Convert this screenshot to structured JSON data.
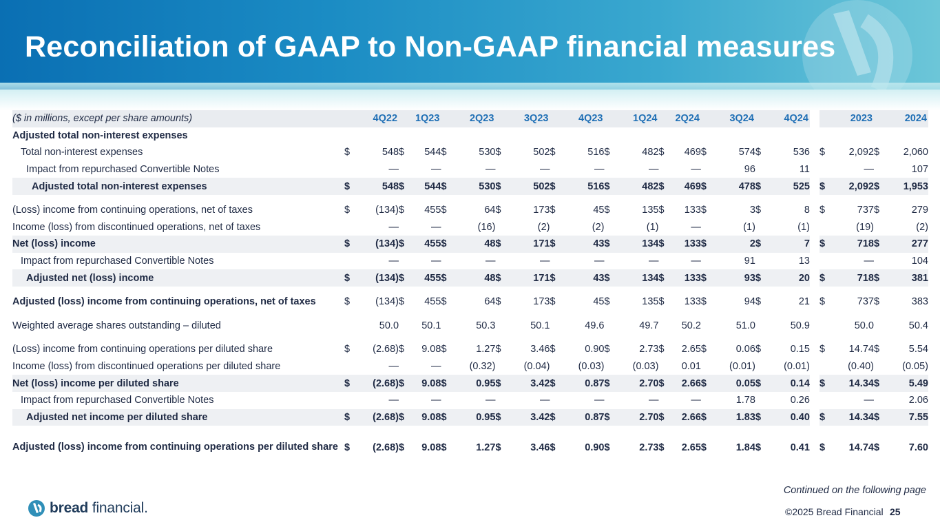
{
  "title": "Reconciliation of GAAP to Non-GAAP financial measures",
  "units_note": "($ in millions, except per share amounts)",
  "periods": [
    "4Q22",
    "1Q23",
    "2Q23",
    "3Q23",
    "4Q23",
    "1Q24",
    "2Q24",
    "3Q24",
    "4Q24"
  ],
  "years": [
    "2023",
    "2024"
  ],
  "rows": [
    {
      "label": "Adjusted total non-interest expenses",
      "style": "bold",
      "indent": 0,
      "dollar": false,
      "values": [
        "",
        "",
        "",
        "",
        "",
        "",
        "",
        "",
        "",
        "",
        ""
      ]
    },
    {
      "label": "Total non-interest expenses",
      "style": "normal",
      "indent": 1,
      "dollar": true,
      "values": [
        "548",
        "544",
        "530",
        "502",
        "516",
        "482",
        "469",
        "574",
        "536",
        "2,092",
        "2,060"
      ]
    },
    {
      "label": "Impact from repurchased Convertible Notes",
      "style": "normal",
      "indent": 2,
      "dollar": false,
      "values": [
        "—",
        "—",
        "—",
        "—",
        "—",
        "—",
        "—",
        "96",
        "11",
        "—",
        "107"
      ]
    },
    {
      "label": "Adjusted total non-interest expenses",
      "style": "bold shade",
      "indent": 3,
      "dollar": true,
      "values": [
        "548",
        "544",
        "530",
        "502",
        "516",
        "482",
        "469",
        "478",
        "525",
        "2,092",
        "1,953"
      ]
    },
    {
      "spacer": true
    },
    {
      "label": "(Loss) income from continuing operations, net of taxes",
      "style": "normal",
      "indent": 0,
      "dollar": true,
      "values": [
        "(134)",
        "455",
        "64",
        "173",
        "45",
        "135",
        "133",
        "3",
        "8",
        "737",
        "279"
      ]
    },
    {
      "label": "Income (loss) from discontinued operations, net of taxes",
      "style": "normal",
      "indent": 0,
      "dollar": false,
      "values": [
        "—",
        "—",
        "(16)",
        "(2)",
        "(2)",
        "(1)",
        "—",
        "(1)",
        "(1)",
        "(19)",
        "(2)"
      ]
    },
    {
      "label": "Net (loss) income",
      "style": "bold shade",
      "indent": 0,
      "dollar": true,
      "values": [
        "(134)",
        "455",
        "48",
        "171",
        "43",
        "134",
        "133",
        "2",
        "7",
        "718",
        "277"
      ]
    },
    {
      "label": "Impact from repurchased Convertible Notes",
      "style": "normal",
      "indent": 1,
      "dollar": false,
      "values": [
        "—",
        "—",
        "—",
        "—",
        "—",
        "—",
        "—",
        "91",
        "13",
        "—",
        "104"
      ]
    },
    {
      "label": "Adjusted net (loss) income",
      "style": "bold shade",
      "indent": 2,
      "dollar": true,
      "values": [
        "(134)",
        "455",
        "48",
        "171",
        "43",
        "134",
        "133",
        "93",
        "20",
        "718",
        "381"
      ]
    },
    {
      "spacer": true
    },
    {
      "label": "Adjusted (loss) income from continuing operations, net of taxes",
      "style": "bold-label",
      "indent": 0,
      "dollar": true,
      "values": [
        "(134)",
        "455",
        "64",
        "173",
        "45",
        "135",
        "133",
        "94",
        "21",
        "737",
        "383"
      ]
    },
    {
      "spacer": true
    },
    {
      "label": "Weighted average shares outstanding – diluted",
      "style": "normal",
      "indent": 0,
      "dollar": false,
      "values": [
        "50.0",
        "50.1",
        "50.3",
        "50.1",
        "49.6",
        "49.7",
        "50.2",
        "51.0",
        "50.9",
        "50.0",
        "50.4"
      ]
    },
    {
      "spacer": true
    },
    {
      "label": "(Loss) income from continuing operations per diluted share",
      "style": "normal",
      "indent": 0,
      "dollar": true,
      "values": [
        "(2.68)",
        "9.08",
        "1.27",
        "3.46",
        "0.90",
        "2.73",
        "2.65",
        "0.06",
        "0.15",
        "14.74",
        "5.54"
      ]
    },
    {
      "label": "Income (loss) from discontinued operations per diluted share",
      "style": "normal",
      "indent": 0,
      "dollar": false,
      "values": [
        "—",
        "—",
        "(0.32)",
        "(0.04)",
        "(0.03)",
        "(0.03)",
        "0.01",
        "(0.01)",
        "(0.01)",
        "(0.40)",
        "(0.05)"
      ]
    },
    {
      "label": "Net (loss) income per diluted share",
      "style": "bold shade",
      "indent": 0,
      "dollar": true,
      "values": [
        "(2.68)",
        "9.08",
        "0.95",
        "3.42",
        "0.87",
        "2.70",
        "2.66",
        "0.05",
        "0.14",
        "14.34",
        "5.49"
      ]
    },
    {
      "label": "Impact from repurchased Convertible Notes",
      "style": "normal",
      "indent": 1,
      "dollar": false,
      "values": [
        "—",
        "—",
        "—",
        "—",
        "—",
        "—",
        "—",
        "1.78",
        "0.26",
        "—",
        "2.06"
      ]
    },
    {
      "label": "Adjusted net income per diluted share",
      "style": "bold shade",
      "indent": 2,
      "dollar": true,
      "values": [
        "(2.68)",
        "9.08",
        "0.95",
        "3.42",
        "0.87",
        "2.70",
        "2.66",
        "1.83",
        "0.40",
        "14.34",
        "7.55"
      ]
    },
    {
      "spacer": true
    },
    {
      "label": "Adjusted (loss) income from continuing operations per diluted share",
      "style": "bold tall",
      "indent": 0,
      "dollar": true,
      "values": [
        "(2.68)",
        "9.08",
        "1.27",
        "3.46",
        "0.90",
        "2.73",
        "2.65",
        "1.84",
        "0.41",
        "14.74",
        "7.60"
      ]
    }
  ],
  "currency_symbol": "$",
  "continued_note": "Continued on the following page",
  "brand_name_bold": "bread",
  "brand_name_rest": " financial",
  "brand_mark": ".",
  "copyright": "©2025 Bread Financial",
  "page_number": "25",
  "colors": {
    "header_start": "#0a6fb3",
    "header_end": "#6cc6d8",
    "period_header": "#1f6fb5",
    "row_shade": "#eef0f3"
  }
}
